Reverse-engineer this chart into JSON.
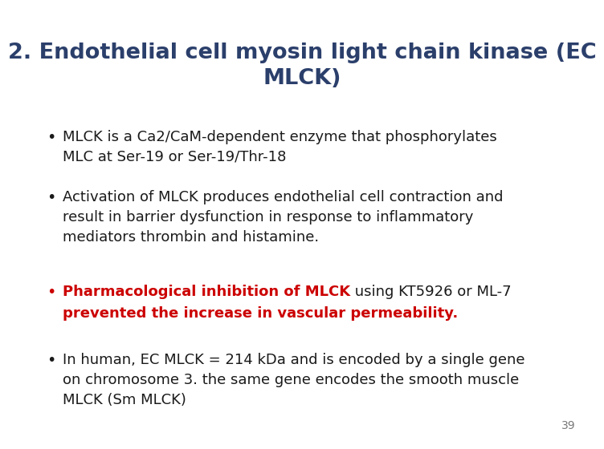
{
  "title": "2. Endothelial cell myosin light chain kinase (EC\nMLCK)",
  "title_color": "#2B3F6B",
  "background_color": "#FFFFFF",
  "bullet1": "MLCK is a Ca2/CaM-dependent enzyme that phosphorylates\nMLC at Ser-19 or Ser-19/Thr-18",
  "bullet2": "Activation of MLCK produces endothelial cell contraction and\nresult in barrier dysfunction in response to inflammatory\nmediators thrombin and histamine.",
  "bullet3_red": "Pharmacological inhibition of MLCK",
  "bullet3_black": " using KT5926 or ML-7",
  "bullet3_line2": "prevented the increase in vascular permeability.",
  "bullet4": "In human, EC MLCK = 214 kDa and is encoded by a single gene\non chromosome 3. the same gene encodes the smooth muscle\nMLCK (Sm MLCK)",
  "red_color": "#CC0000",
  "dark_color": "#1A1A1A",
  "page_number": "39",
  "body_fontsize": 13.0,
  "title_fontsize": 19.5
}
